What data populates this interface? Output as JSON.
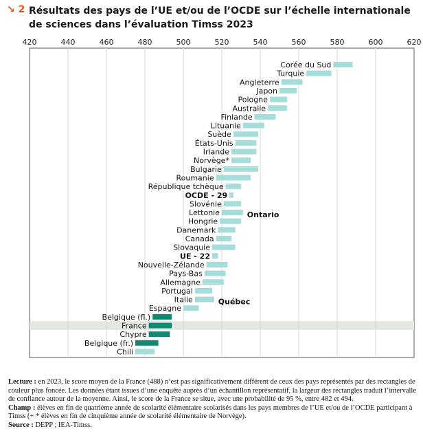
{
  "header": {
    "figure_number": "2",
    "title": "Résultats des pays de l’UE et/ou de l’OCDE sur l’échelle internationale de sciences dans l’évaluation Timss 2023"
  },
  "chart_data": {
    "type": "bar",
    "orientation": "horizontal-range",
    "x_ticks": [
      420,
      440,
      460,
      480,
      500,
      520,
      540,
      560,
      580,
      600,
      620
    ],
    "xlim": [
      420,
      620
    ],
    "axis_position": "top",
    "grid": true,
    "colors": {
      "oecd": "#a6dcd9",
      "highlight": "#0e8a72",
      "row_highlight": "#e3e8e1"
    },
    "series": [
      {
        "label": "Corée du Sud",
        "low": 578,
        "high": 588,
        "group": "normal"
      },
      {
        "label": "Turquie",
        "low": 564,
        "high": 577,
        "group": "normal"
      },
      {
        "label": "Angleterre",
        "low": 551,
        "high": 562,
        "group": "normal"
      },
      {
        "label": "Japon",
        "low": 550,
        "high": 559,
        "group": "normal"
      },
      {
        "label": "Pologne",
        "low": 545,
        "high": 554,
        "group": "normal"
      },
      {
        "label": "Australie",
        "low": 544,
        "high": 554,
        "group": "normal"
      },
      {
        "label": "Finlande",
        "low": 537,
        "high": 548,
        "group": "normal"
      },
      {
        "label": "Lituanie",
        "low": 531,
        "high": 542,
        "group": "normal"
      },
      {
        "label": "Suède",
        "low": 526,
        "high": 539,
        "group": "normal"
      },
      {
        "label": "États-Unis",
        "low": 527,
        "high": 538,
        "group": "normal"
      },
      {
        "label": "Irlande",
        "low": 525,
        "high": 538,
        "group": "normal"
      },
      {
        "label": "Norvège*",
        "low": 525,
        "high": 535,
        "group": "normal"
      },
      {
        "label": "Bulgarie",
        "low": 521,
        "high": 539,
        "group": "normal"
      },
      {
        "label": "Roumanie",
        "low": 517,
        "high": 535,
        "group": "normal"
      },
      {
        "label": "République tchèque",
        "low": 522,
        "high": 530,
        "group": "normal"
      },
      {
        "label": "OCDE - 29",
        "low": 524,
        "high": 526,
        "group": "average"
      },
      {
        "label": "Slovénie",
        "low": 521,
        "high": 530,
        "group": "normal"
      },
      {
        "label": "Lettonie",
        "low": 520,
        "high": 531,
        "group": "normal"
      },
      {
        "label": "Hongrie",
        "low": 519,
        "high": 530,
        "group": "normal"
      },
      {
        "label": "Danemark",
        "low": 518,
        "high": 527,
        "group": "normal"
      },
      {
        "label": "Canada",
        "low": 517,
        "high": 525,
        "group": "normal"
      },
      {
        "label": "Slovaquie",
        "low": 515,
        "high": 527,
        "group": "normal"
      },
      {
        "label": "UE - 22",
        "low": 515,
        "high": 518,
        "group": "average"
      },
      {
        "label": "Nouvelle-Zélande",
        "low": 512,
        "high": 523,
        "group": "normal"
      },
      {
        "label": "Pays-Bas",
        "low": 511,
        "high": 522,
        "group": "normal"
      },
      {
        "label": "Allemagne",
        "low": 510,
        "high": 521,
        "group": "normal"
      },
      {
        "label": "Portugal",
        "low": 506,
        "high": 515,
        "group": "normal"
      },
      {
        "label": "Italie",
        "low": 506,
        "high": 516,
        "group": "normal"
      },
      {
        "label": "Espagne",
        "low": 500,
        "high": 508,
        "group": "normal"
      },
      {
        "label": "Belgique (fl.)",
        "low": 484,
        "high": 494,
        "group": "highlight"
      },
      {
        "label": "France",
        "low": 482,
        "high": 494,
        "group": "highlight",
        "row_highlight": true
      },
      {
        "label": "Chypre",
        "low": 482,
        "high": 493,
        "group": "highlight"
      },
      {
        "label": "Belgique (fr.)",
        "low": 475,
        "high": 487,
        "group": "highlight"
      },
      {
        "label": "Chili",
        "low": 475,
        "high": 485,
        "group": "normal"
      }
    ],
    "annotations": [
      {
        "text": "Ontario",
        "row": "Lettonie"
      },
      {
        "text": "Québec",
        "row": "Italie"
      }
    ]
  },
  "notes": {
    "lecture_label": "Lecture :",
    "lecture_text": " en 2023, le score moyen de la France (488) n’est pas significativement différent de ceux des pays représentés par des rectangles de couleur plus foncée. Les données étant issues d’une enquête auprès d’un échantillon représentatif, la largeur des rectangles traduit l’intervalle de confiance autour de la moyenne. Ainsi, le score de la France se situe, avec une probabilité de 95 %, entre 482 et 494.",
    "champ_label": "Champ :",
    "champ_text": " élèves en fin de quatrième année de scolarité élémentaire scolarisés dans les pays membres de l’UE et/ou de l’OCDE participant à Timss (+ * élèves en fin de cinquième année de scolarité élémentaire de Norvège).",
    "source_label": "Source :",
    "source_text": " DEPP ; IEA-Timss."
  }
}
